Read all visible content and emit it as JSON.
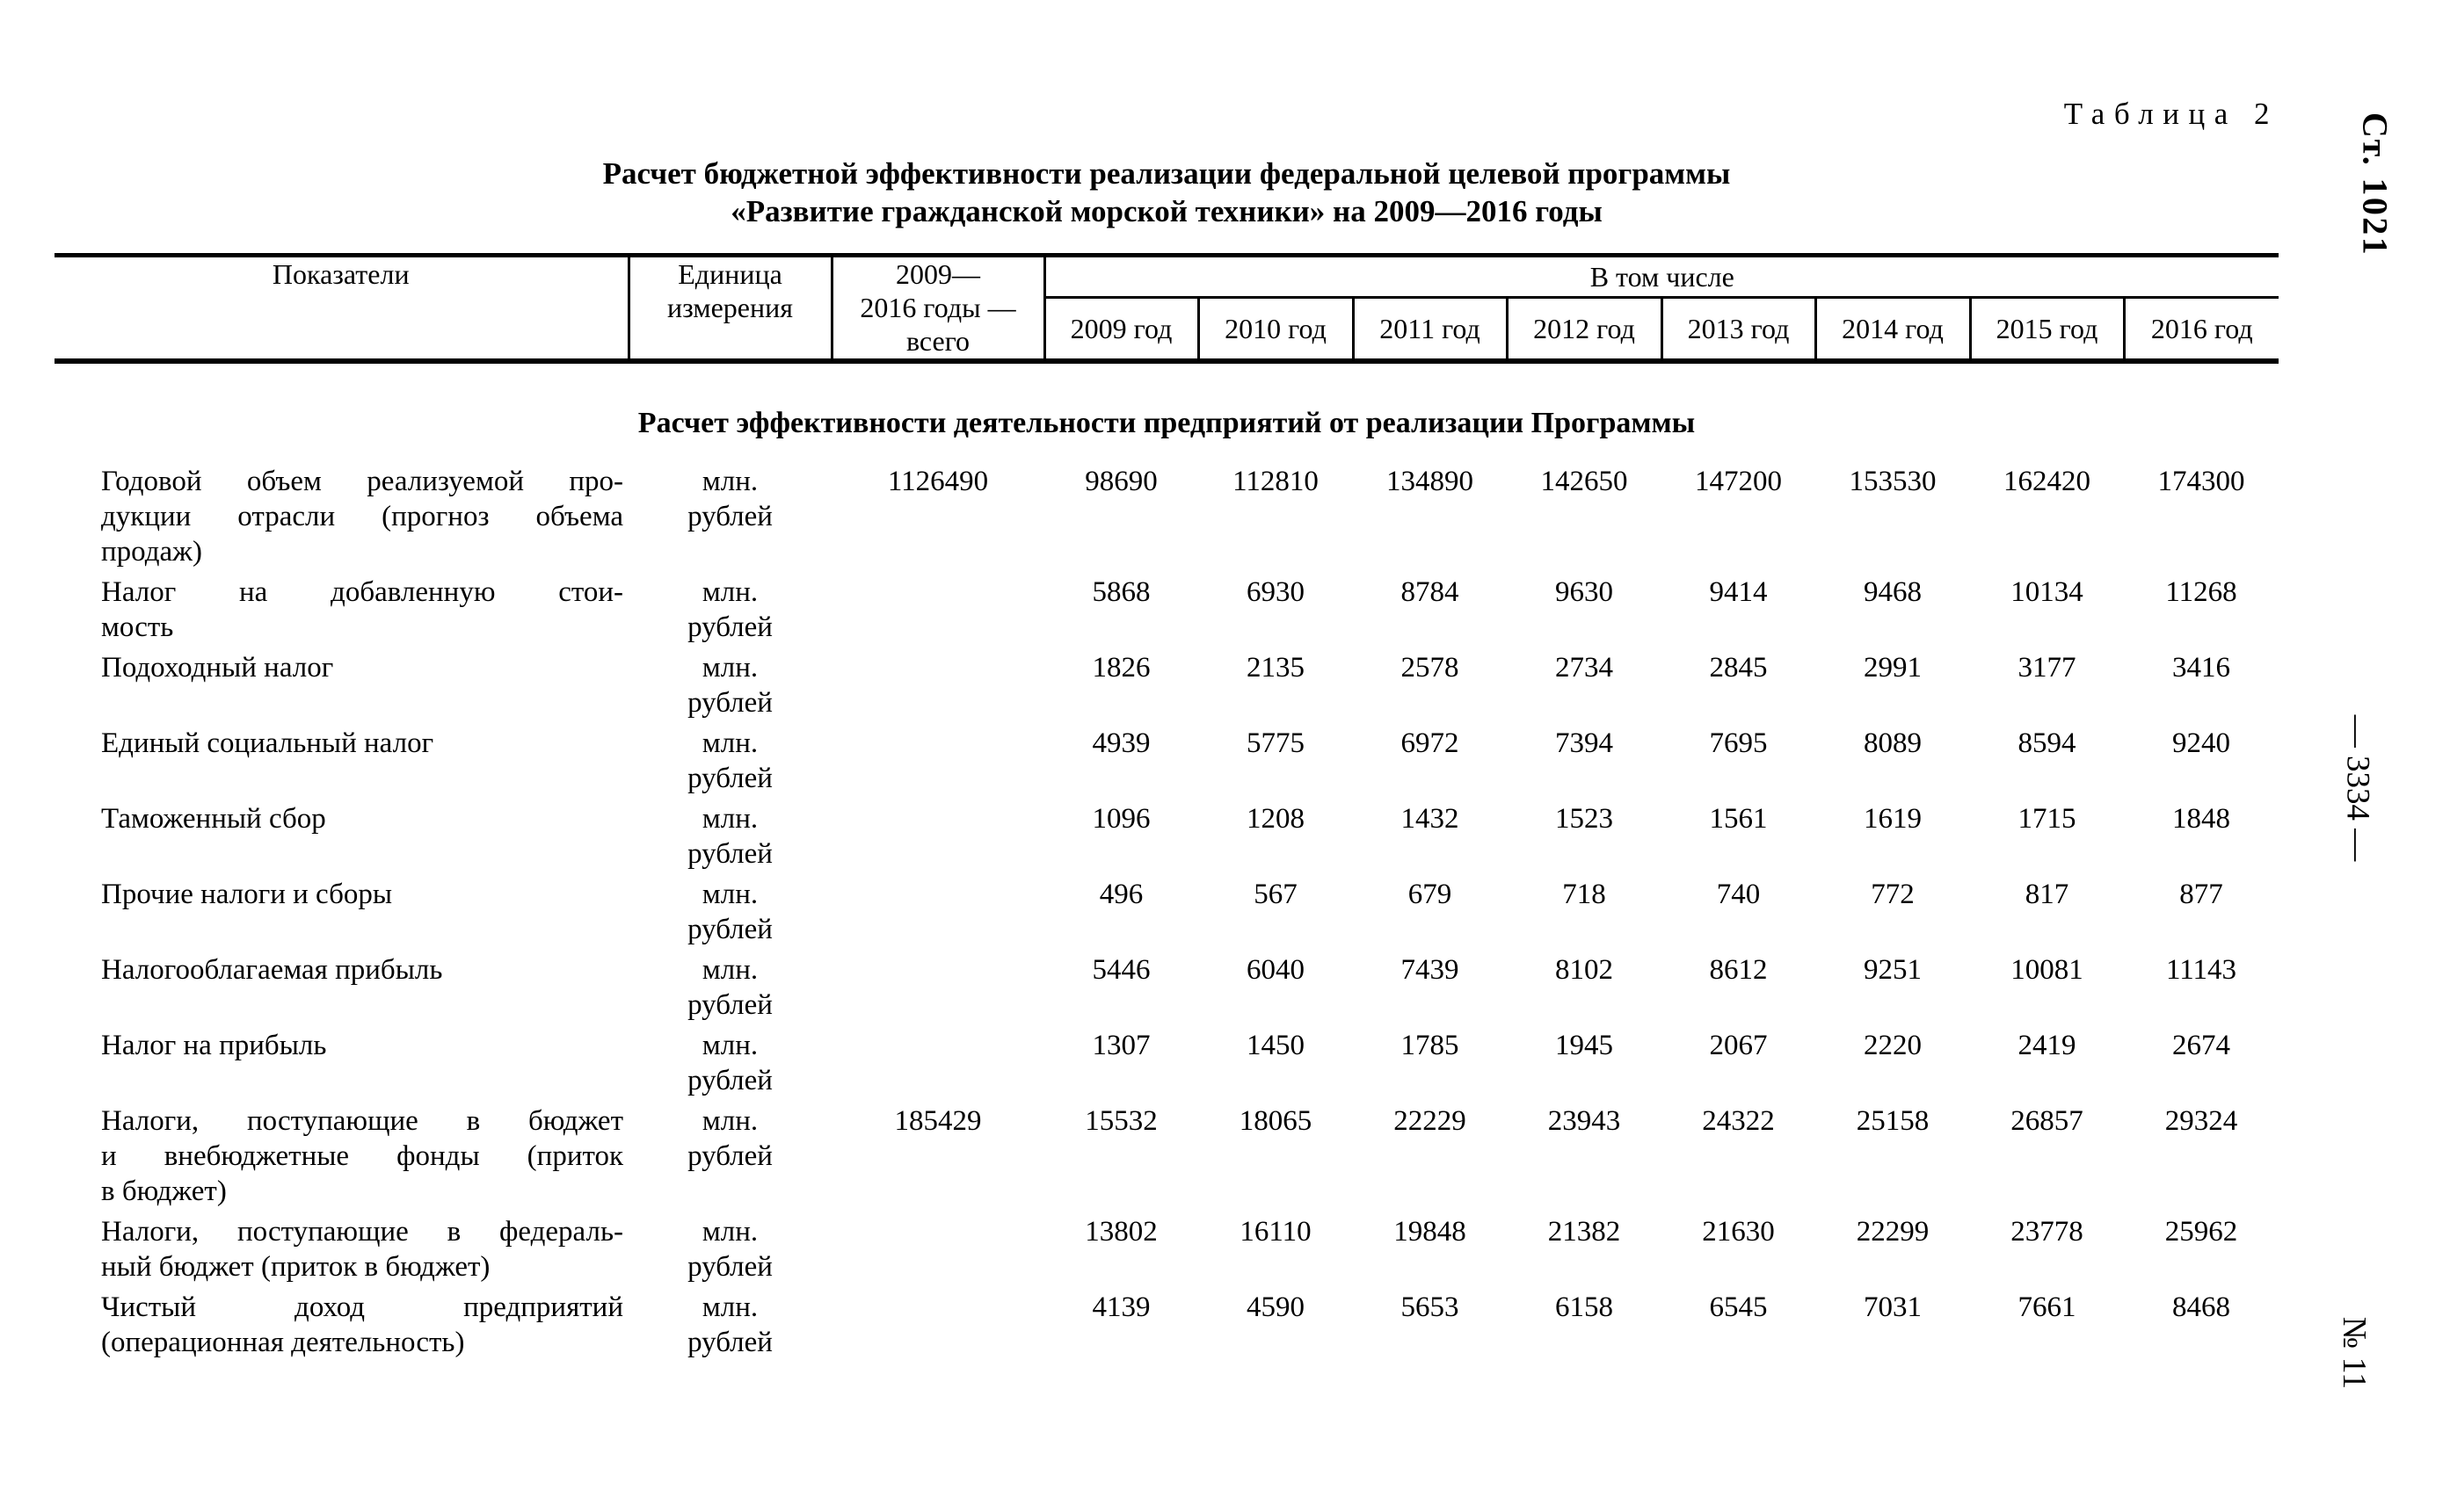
{
  "page": {
    "table_label": "Таблица 2",
    "title_line1": "Расчет бюджетной эффективности реализации федеральной целевой программы",
    "title_line2": "«Развитие гражданской морской техники» на 2009—2016 годы",
    "margin_article": "Ст. 1021",
    "margin_page_number": "— 3334 —",
    "margin_issue_number": "№ 11"
  },
  "table": {
    "headers": {
      "indicators": "Показатели",
      "unit": "Единица\nизмерения",
      "total": "2009—\n2016 годы —\nвсего",
      "including": "В том числе",
      "years": [
        "2009 год",
        "2010 год",
        "2011 год",
        "2012 год",
        "2013 год",
        "2014 год",
        "2015 год",
        "2016 год"
      ]
    },
    "section_heading": "Расчет эффективности деятельности предприятий от реализации Программы",
    "rows": [
      {
        "label": "Годовой объем реализуемой про-\nдукции отрасли (прогноз объема\nпродаж)",
        "unit": "млн.\nрублей",
        "total": "1126490",
        "values": [
          "98690",
          "112810",
          "134890",
          "142650",
          "147200",
          "153530",
          "162420",
          "174300"
        ]
      },
      {
        "label": "Налог на добавленную стои-\nмость",
        "unit": "млн.\nрублей",
        "total": "",
        "values": [
          "5868",
          "6930",
          "8784",
          "9630",
          "9414",
          "9468",
          "10134",
          "11268"
        ]
      },
      {
        "label": "Подоходный налог",
        "unit": "млн.\nрублей",
        "total": "",
        "values": [
          "1826",
          "2135",
          "2578",
          "2734",
          "2845",
          "2991",
          "3177",
          "3416"
        ]
      },
      {
        "label": "Единый социальный налог",
        "unit": "млн.\nрублей",
        "total": "",
        "values": [
          "4939",
          "5775",
          "6972",
          "7394",
          "7695",
          "8089",
          "8594",
          "9240"
        ]
      },
      {
        "label": "Таможенный сбор",
        "unit": "млн.\nрублей",
        "total": "",
        "values": [
          "1096",
          "1208",
          "1432",
          "1523",
          "1561",
          "1619",
          "1715",
          "1848"
        ]
      },
      {
        "label": "Прочие налоги и сборы",
        "unit": "млн.\nрублей",
        "total": "",
        "values": [
          "496",
          "567",
          "679",
          "718",
          "740",
          "772",
          "817",
          "877"
        ]
      },
      {
        "label": "Налогооблагаемая прибыль",
        "unit": "млн.\nрублей",
        "total": "",
        "values": [
          "5446",
          "6040",
          "7439",
          "8102",
          "8612",
          "9251",
          "10081",
          "11143"
        ]
      },
      {
        "label": "Налог на прибыль",
        "unit": "млн.\nрублей",
        "total": "",
        "values": [
          "1307",
          "1450",
          "1785",
          "1945",
          "2067",
          "2220",
          "2419",
          "2674"
        ]
      },
      {
        "label": "Налоги, поступающие в бюджет\nи внебюджетные фонды (приток\nв бюджет)",
        "unit": "млн.\nрублей",
        "total": "185429",
        "values": [
          "15532",
          "18065",
          "22229",
          "23943",
          "24322",
          "25158",
          "26857",
          "29324"
        ]
      },
      {
        "label": "Налоги, поступающие в федераль-\nный бюджет (приток в бюджет)",
        "unit": "млн.\nрублей",
        "total": "",
        "values": [
          "13802",
          "16110",
          "19848",
          "21382",
          "21630",
          "22299",
          "23778",
          "25962"
        ]
      },
      {
        "label": "Чистый доход предприятий\n(операционная деятельность)",
        "unit": "млн.\nрублей",
        "total": "",
        "values": [
          "4139",
          "4590",
          "5653",
          "6158",
          "6545",
          "7031",
          "7661",
          "8468"
        ]
      }
    ]
  }
}
